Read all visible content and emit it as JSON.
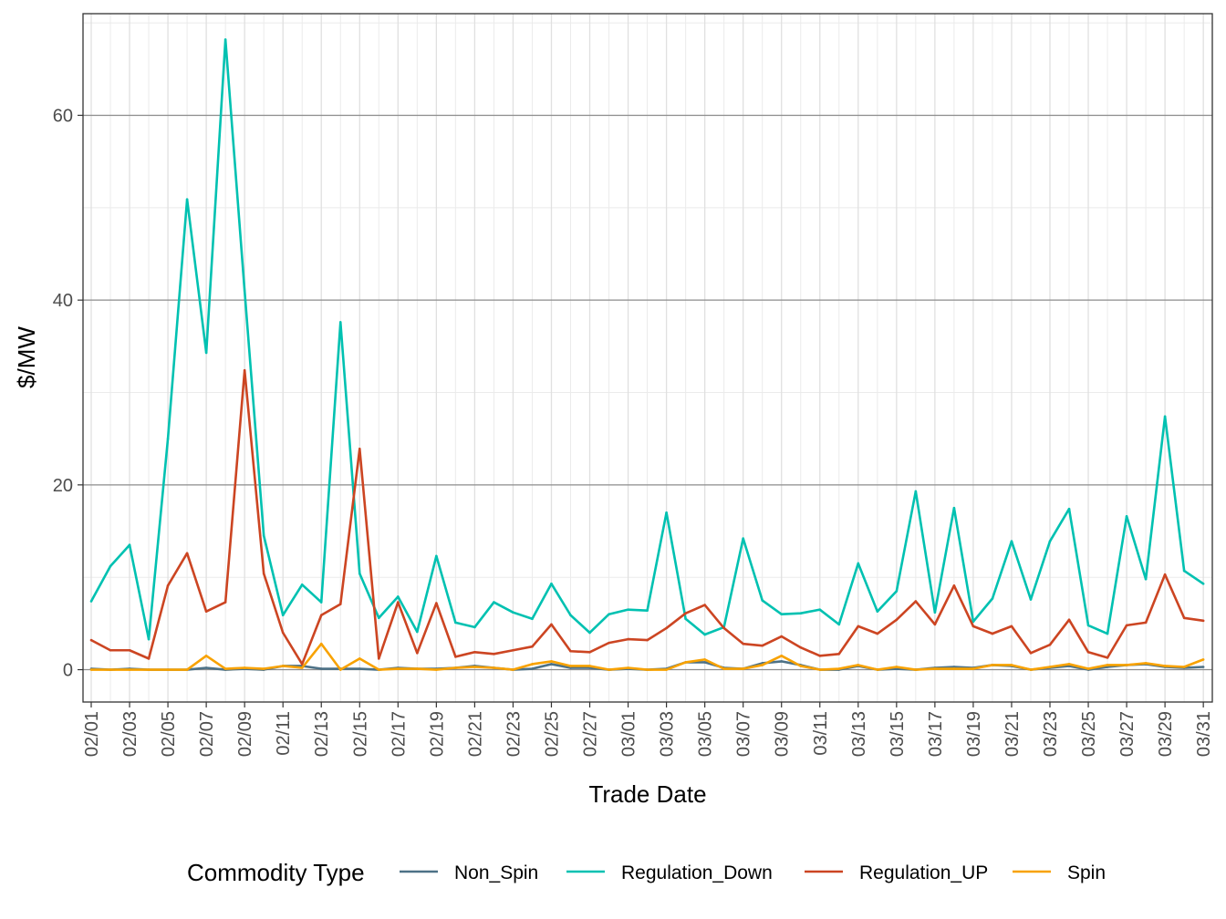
{
  "chart_data": {
    "type": "line",
    "title": "",
    "xlabel": "Trade Date",
    "ylabel": "$/MW",
    "ylim": [
      -3.5,
      71
    ],
    "y_ticks": [
      0,
      20,
      40,
      60
    ],
    "y_tick_labels": [
      "0",
      "20",
      "40",
      "60"
    ],
    "x_tick_labels": [
      "02/01",
      "02/03",
      "02/05",
      "02/07",
      "02/09",
      "02/11",
      "02/13",
      "02/15",
      "02/17",
      "02/19",
      "02/21",
      "02/23",
      "02/25",
      "02/27",
      "03/01",
      "03/03",
      "03/05",
      "03/07",
      "03/09",
      "03/11",
      "03/13",
      "03/15",
      "03/17",
      "03/19",
      "03/21",
      "03/23",
      "03/25",
      "03/27",
      "03/29",
      "03/31"
    ],
    "x": [
      "02/01",
      "02/02",
      "02/03",
      "02/04",
      "02/05",
      "02/06",
      "02/07",
      "02/08",
      "02/09",
      "02/10",
      "02/11",
      "02/12",
      "02/13",
      "02/14",
      "02/15",
      "02/16",
      "02/17",
      "02/18",
      "02/19",
      "02/20",
      "02/21",
      "02/22",
      "02/23",
      "02/24",
      "02/25",
      "02/26",
      "02/27",
      "02/28",
      "03/01",
      "03/02",
      "03/03",
      "03/04",
      "03/05",
      "03/06",
      "03/07",
      "03/08",
      "03/09",
      "03/10",
      "03/11",
      "03/12",
      "03/13",
      "03/14",
      "03/15",
      "03/16",
      "03/17",
      "03/18",
      "03/19",
      "03/20",
      "03/21",
      "03/22",
      "03/23",
      "03/24",
      "03/25",
      "03/26",
      "03/27",
      "03/28",
      "03/29",
      "03/30",
      "03/31"
    ],
    "grid": true,
    "legend": {
      "title": "Commodity Type",
      "position": "bottom"
    },
    "series": [
      {
        "name": "Non_Spin",
        "color": "#4d7186",
        "values": [
          0.1,
          0.0,
          0.1,
          0.0,
          0.0,
          0.0,
          0.2,
          0.0,
          0.1,
          0.0,
          0.4,
          0.4,
          0.1,
          0.1,
          0.1,
          0.0,
          0.2,
          0.1,
          0.1,
          0.2,
          0.4,
          0.2,
          0.0,
          0.1,
          0.6,
          0.2,
          0.2,
          0.0,
          0.1,
          0.0,
          0.1,
          0.8,
          0.8,
          0.2,
          0.1,
          0.7,
          0.9,
          0.5,
          0.0,
          0.0,
          0.4,
          0.0,
          0.1,
          0.0,
          0.2,
          0.3,
          0.2,
          0.5,
          0.4,
          0.0,
          0.2,
          0.4,
          0.0,
          0.3,
          0.5,
          0.6,
          0.3,
          0.2,
          0.3
        ]
      },
      {
        "name": "Regulation_Down",
        "color": "#00c1b1",
        "values": [
          7.4,
          11.2,
          13.5,
          3.3,
          25.0,
          50.9,
          34.3,
          68.2,
          41.0,
          14.5,
          5.9,
          9.2,
          7.3,
          37.6,
          10.4,
          5.6,
          7.9,
          4.1,
          12.3,
          5.1,
          4.6,
          7.3,
          6.2,
          5.5,
          9.3,
          5.9,
          4.0,
          6.0,
          6.5,
          6.4,
          17.0,
          5.5,
          3.8,
          4.6,
          14.2,
          7.5,
          6.0,
          6.1,
          6.5,
          4.9,
          11.5,
          6.3,
          8.5,
          19.3,
          6.2,
          17.5,
          5.2,
          7.7,
          13.9,
          7.6,
          13.9,
          17.4,
          4.8,
          3.9,
          16.6,
          9.8,
          27.4,
          10.7,
          9.3
        ]
      },
      {
        "name": "Regulation_UP",
        "color": "#cc4522",
        "values": [
          3.2,
          2.1,
          2.1,
          1.2,
          9.1,
          12.6,
          6.3,
          7.3,
          32.4,
          10.4,
          4.0,
          0.6,
          5.9,
          7.1,
          23.9,
          1.2,
          7.3,
          1.8,
          7.2,
          1.4,
          1.9,
          1.7,
          2.1,
          2.5,
          4.9,
          2.0,
          1.9,
          2.9,
          3.3,
          3.2,
          4.5,
          6.1,
          7.0,
          4.5,
          2.8,
          2.6,
          3.6,
          2.4,
          1.5,
          1.7,
          4.7,
          3.9,
          5.4,
          7.4,
          4.9,
          9.1,
          4.7,
          3.9,
          4.7,
          1.8,
          2.7,
          5.4,
          1.9,
          1.3,
          4.8,
          5.1,
          10.3,
          5.6,
          5.3
        ]
      },
      {
        "name": "Spin",
        "color": "#f8a200",
        "values": [
          0.0,
          0.0,
          0.0,
          0.0,
          0.0,
          0.0,
          1.5,
          0.1,
          0.2,
          0.1,
          0.4,
          0.2,
          2.8,
          0.0,
          1.2,
          0.0,
          0.1,
          0.1,
          0.0,
          0.2,
          0.3,
          0.2,
          0.0,
          0.6,
          0.9,
          0.4,
          0.4,
          0.0,
          0.2,
          0.0,
          0.0,
          0.8,
          1.1,
          0.1,
          0.1,
          0.5,
          1.5,
          0.4,
          0.0,
          0.1,
          0.5,
          0.0,
          0.3,
          0.0,
          0.1,
          0.1,
          0.1,
          0.5,
          0.5,
          0.0,
          0.3,
          0.6,
          0.1,
          0.5,
          0.5,
          0.7,
          0.4,
          0.3,
          1.1
        ]
      }
    ]
  }
}
